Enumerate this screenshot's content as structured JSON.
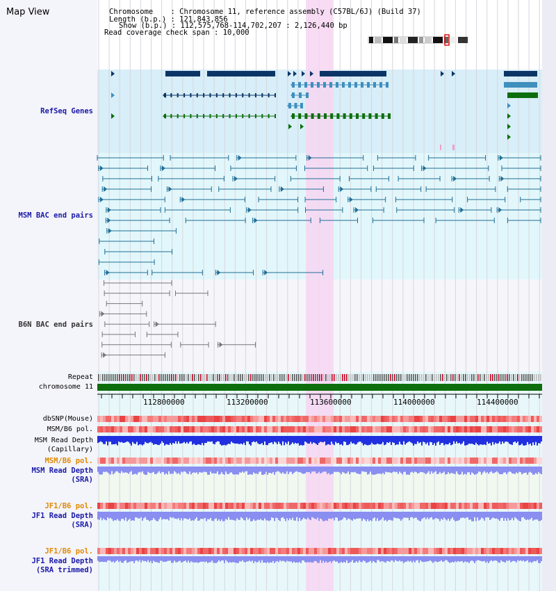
{
  "title": "Map View",
  "info": {
    "chromosome_label": "Chromosome",
    "chromosome_value": "Chromosome 11, reference assembly (C57BL/6J) (Build 37)",
    "length_label": "Length (b.p.)",
    "length_value": "121,843,856",
    "show_label": "Show (b.p.)",
    "show_value": "112,575,768-114,702,207 : 2,126,440 bp",
    "coverage_label": "Read coverage check span",
    "coverage_value": "10,000"
  },
  "tracks": {
    "refseq": "RefSeq Genes",
    "msm_bac": "MSM BAC end pairs",
    "b6n_bac": "B6N BAC end pairs",
    "repeat": "Repeat",
    "chromosome": "chromosome 11",
    "dbsnp": "dbSNP(Mouse)",
    "msm_b6_pol_1": "MSM/B6 pol.",
    "msm_read_depth_cap_1": "MSM Read Depth",
    "msm_read_depth_cap_2": "(Capillary)",
    "msm_b6_pol_2": "MSM/B6 pol.",
    "msm_read_depth_sra_1": "MSM Read Depth",
    "msm_read_depth_sra_2": "(SRA)",
    "jf1_b6_pol_1": "JF1/B6 pol.",
    "jf1_read_depth_sra_1": "JF1 Read Depth",
    "jf1_read_depth_sra_2": "(SRA)",
    "jf1_b6_pol_2": "JF1/B6 pol.",
    "jf1_read_depth_trim_1": "JF1 Read Depth",
    "jf1_read_depth_trim_2": "(SRA trimmed)"
  },
  "axis_ticks": [
    "112800000",
    "113200000",
    "113600000",
    "114000000",
    "114400000"
  ],
  "colors": {
    "refseq_bg": "#d8eef8",
    "msm_bg": "#e2f7fb",
    "b6n_bg": "#f6f6fa",
    "highlight": "#f7d6f2",
    "chromosome": "#0d6e0d",
    "gene_dark": "#0b3566",
    "gene_mid": "#3f8fbf",
    "gene_green": "#0d6e0d",
    "pol_red": "#ee5a5a",
    "depth_blue": "#2030e0",
    "depth_light": "#8a8ef0"
  }
}
